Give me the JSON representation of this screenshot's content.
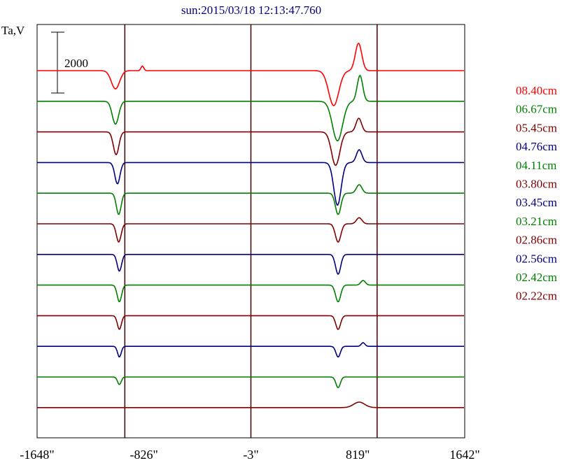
{
  "chart_data": {
    "type": "line",
    "title": "sun:2015/03/18 12:13:47.760",
    "ylabel": "Ta,V",
    "scale_bar_label": "2000",
    "scale_bar_value": 2000,
    "xlim": [
      -1648,
      1642
    ],
    "x_ticks": [
      {
        "value": -1648,
        "label": "-1648\""
      },
      {
        "value": -826,
        "label": "-826\""
      },
      {
        "value": -3,
        "label": "-3\""
      },
      {
        "value": 819,
        "label": "819\""
      },
      {
        "value": 1642,
        "label": "1642\""
      }
    ],
    "vertical_lines": [
      -973,
      -3,
      968
    ],
    "series": [
      {
        "name": "08.40cm",
        "color": "#ff0000",
        "start": -1648,
        "dips": [
          {
            "x": -1045,
            "depth": 600,
            "width": 45
          },
          {
            "x": 634,
            "depth": 1150,
            "width": 55
          }
        ],
        "bumps": [
          {
            "x": 825,
            "height": 900,
            "width": 35
          },
          {
            "x": -838,
            "height": 150,
            "width": 15
          }
        ]
      },
      {
        "name": "06.67cm",
        "color": "#008000",
        "start": -1648,
        "dips": [
          {
            "x": -1045,
            "depth": 750,
            "width": 35
          },
          {
            "x": 663,
            "depth": 1300,
            "width": 55
          }
        ],
        "bumps": [
          {
            "x": 836,
            "height": 850,
            "width": 30
          }
        ]
      },
      {
        "name": "05.45cm",
        "color": "#800000",
        "start": -1648,
        "dips": [
          {
            "x": -1040,
            "depth": 750,
            "width": 30
          },
          {
            "x": 649,
            "depth": 1100,
            "width": 45
          }
        ],
        "bumps": [
          {
            "x": 827,
            "height": 450,
            "width": 30
          }
        ]
      },
      {
        "name": "04.76cm",
        "color": "#000080",
        "start": -1648,
        "dips": [
          {
            "x": -1030,
            "depth": 700,
            "width": 28
          },
          {
            "x": 663,
            "depth": 1400,
            "width": 40
          }
        ],
        "bumps": [
          {
            "x": 830,
            "height": 420,
            "width": 30
          }
        ]
      },
      {
        "name": "04.11cm",
        "color": "#008000",
        "start": -1648,
        "dips": [
          {
            "x": -1020,
            "depth": 700,
            "width": 26
          },
          {
            "x": 668,
            "depth": 700,
            "width": 30
          }
        ],
        "bumps": [
          {
            "x": 830,
            "height": 280,
            "width": 30
          }
        ]
      },
      {
        "name": "03.80cm",
        "color": "#800000",
        "start": -1648,
        "dips": [
          {
            "x": -1020,
            "depth": 600,
            "width": 26
          },
          {
            "x": 668,
            "depth": 600,
            "width": 30
          }
        ],
        "bumps": [
          {
            "x": 830,
            "height": 200,
            "width": 30
          }
        ]
      },
      {
        "name": "03.45cm",
        "color": "#000080",
        "start": -1648,
        "dips": [
          {
            "x": -1015,
            "depth": 550,
            "width": 24
          },
          {
            "x": 668,
            "depth": 650,
            "width": 28
          }
        ],
        "bumps": []
      },
      {
        "name": "03.21cm",
        "color": "#008000",
        "start": -1648,
        "dips": [
          {
            "x": -1015,
            "depth": 550,
            "width": 24
          },
          {
            "x": 668,
            "depth": 550,
            "width": 28
          }
        ],
        "bumps": [
          {
            "x": 860,
            "height": 150,
            "width": 25
          }
        ]
      },
      {
        "name": "02.86cm",
        "color": "#800000",
        "start": -1648,
        "dips": [
          {
            "x": -1015,
            "depth": 450,
            "width": 22
          },
          {
            "x": 668,
            "depth": 450,
            "width": 26
          }
        ],
        "bumps": []
      },
      {
        "name": "02.56cm",
        "color": "#000080",
        "start": -1648,
        "dips": [
          {
            "x": -1015,
            "depth": 350,
            "width": 20
          },
          {
            "x": 668,
            "depth": 350,
            "width": 24
          }
        ],
        "bumps": [
          {
            "x": 860,
            "height": 120,
            "width": 20
          }
        ]
      },
      {
        "name": "02.42cm",
        "color": "#008000",
        "start": -1648,
        "dips": [
          {
            "x": -1015,
            "depth": 250,
            "width": 20
          },
          {
            "x": 668,
            "depth": 350,
            "width": 24
          }
        ],
        "bumps": []
      },
      {
        "name": "02.22cm",
        "color": "#800000",
        "start": -1648,
        "dips": [],
        "bumps": [
          {
            "x": 830,
            "height": 180,
            "width": 60
          }
        ]
      }
    ]
  }
}
